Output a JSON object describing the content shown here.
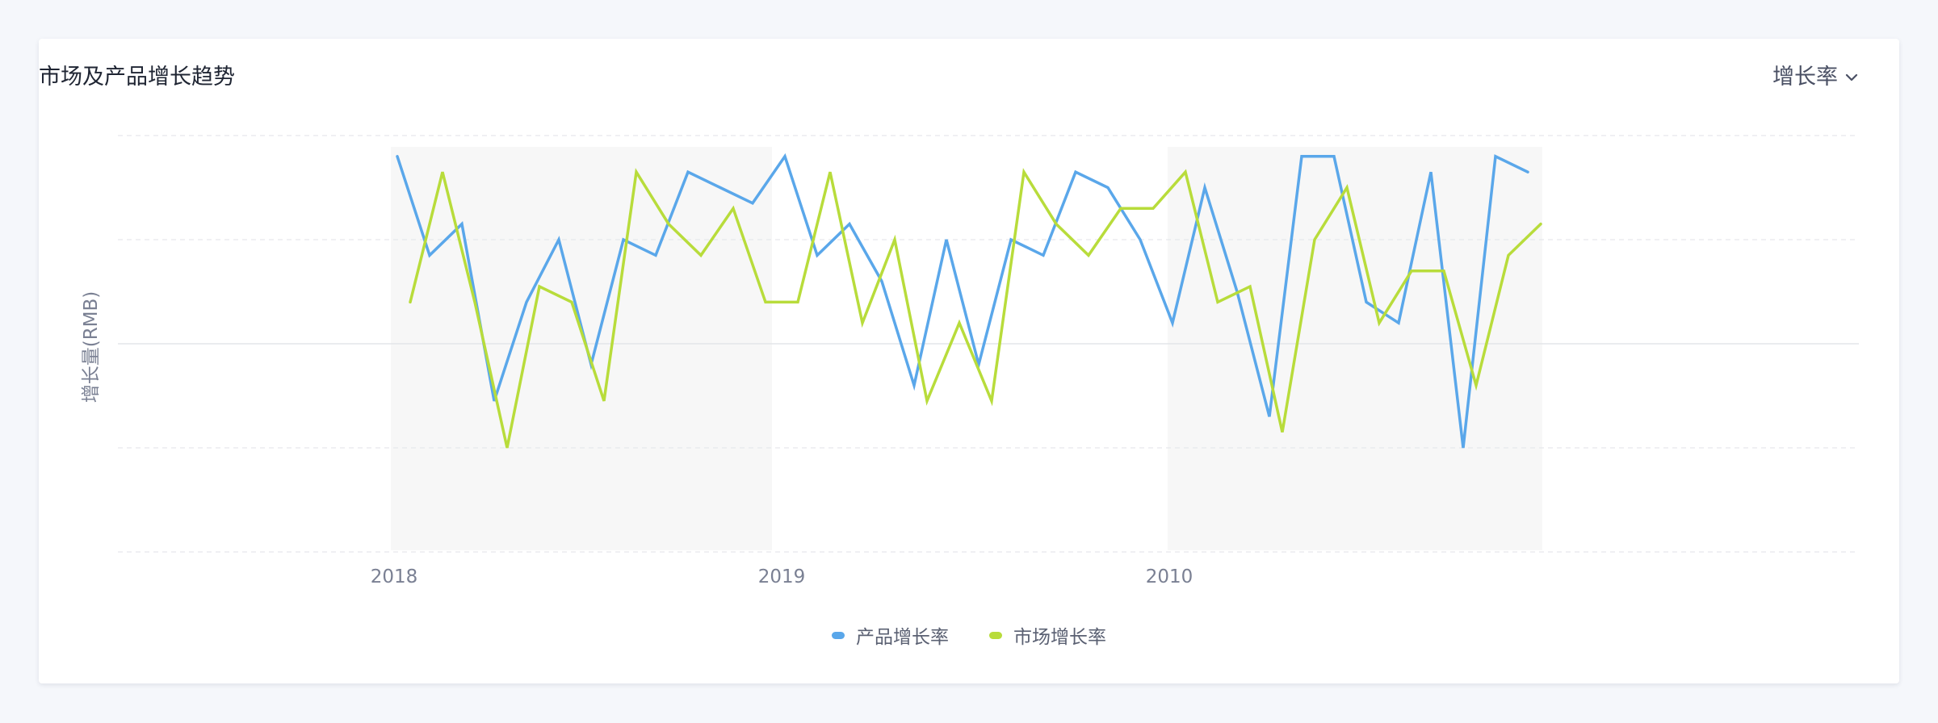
{
  "card": {
    "title": "市场及产品增长趋势",
    "metric_select": {
      "value": "增长率",
      "icon": "chevron-down-icon"
    }
  },
  "colors": {
    "background": "#f5f7fb",
    "card": "#ffffff",
    "product": "#5aa7ea",
    "market": "#b8dc3b",
    "band": "#f7f7f7"
  },
  "chart_data": {
    "type": "line",
    "title": "市场及产品增长趋势",
    "xlabel": "",
    "ylabel": "增长量(RMB)",
    "x_tick_labels": [
      "2018",
      "2019",
      "2010"
    ],
    "ylim": [
      -2,
      2
    ],
    "grid": true,
    "legend_position": "bottom-center",
    "series": [
      {
        "name": "产品增长率",
        "color": "#5aa7ea",
        "values": [
          1.8,
          0.85,
          1.15,
          -0.55,
          0.4,
          1.0,
          -0.2,
          1.0,
          0.85,
          1.65,
          1.5,
          1.35,
          1.8,
          0.85,
          1.15,
          0.6,
          -0.4,
          1.0,
          -0.2,
          1.0,
          0.85,
          1.65,
          1.5,
          1.0,
          0.2,
          1.5,
          0.5,
          -0.7,
          1.8,
          1.8,
          0.4,
          0.2,
          1.65,
          -1.0,
          1.8,
          1.65
        ]
      },
      {
        "name": "市场增长率",
        "color": "#b8dc3b",
        "values": [
          0.4,
          1.65,
          0.4,
          -1.0,
          0.55,
          0.4,
          -0.55,
          1.65,
          1.15,
          0.85,
          1.3,
          0.4,
          0.4,
          1.65,
          0.2,
          1.0,
          -0.55,
          0.2,
          -0.55,
          1.65,
          1.15,
          0.85,
          1.3,
          1.3,
          1.65,
          0.4,
          0.55,
          -0.85,
          1.0,
          1.5,
          0.2,
          0.7,
          0.7,
          -0.4,
          0.85,
          1.15
        ]
      }
    ]
  }
}
